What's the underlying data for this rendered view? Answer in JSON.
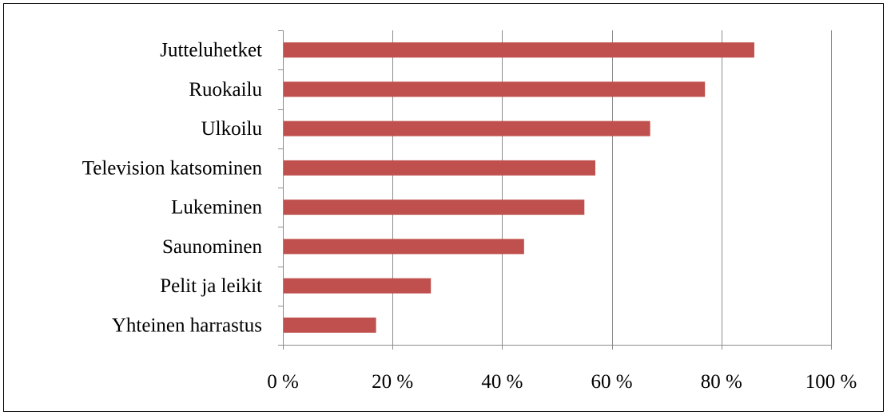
{
  "chart_data": {
    "type": "bar",
    "orientation": "horizontal",
    "categories": [
      "Yhteinen harrastus",
      "Pelit ja leikit",
      "Saunominen",
      "Lukeminen",
      "Television katsominen",
      "Ulkoilu",
      "Ruokailu",
      "Jutteluhetket"
    ],
    "values": [
      17,
      27,
      44,
      55,
      57,
      67,
      77,
      86
    ],
    "xlim": [
      0,
      100
    ],
    "x_ticks": [
      0,
      20,
      40,
      60,
      80,
      100
    ],
    "x_tick_labels": [
      "0 %",
      "20 %",
      "40 %",
      "60 %",
      "80 %",
      "100 %"
    ],
    "grid": "vertical",
    "legend": "none",
    "bar_color": "#c0504d"
  }
}
